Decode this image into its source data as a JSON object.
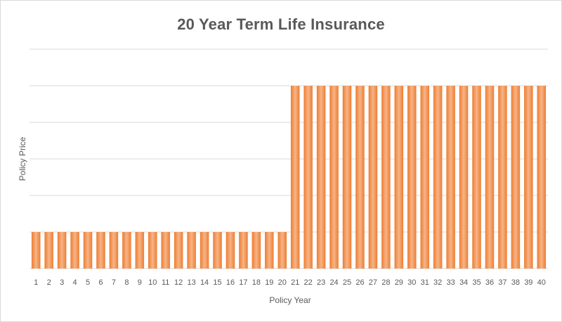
{
  "chart_data": {
    "type": "bar",
    "title": "20 Year Term Life Insurance",
    "xlabel": "Policy Year",
    "ylabel": "Policy Price",
    "categories": [
      "1",
      "2",
      "3",
      "4",
      "5",
      "6",
      "7",
      "8",
      "9",
      "10",
      "11",
      "12",
      "13",
      "14",
      "15",
      "16",
      "17",
      "18",
      "19",
      "20",
      "21",
      "22",
      "23",
      "24",
      "25",
      "26",
      "27",
      "28",
      "29",
      "30",
      "31",
      "32",
      "33",
      "34",
      "35",
      "36",
      "37",
      "38",
      "39",
      "40"
    ],
    "values": [
      1,
      1,
      1,
      1,
      1,
      1,
      1,
      1,
      1,
      1,
      1,
      1,
      1,
      1,
      1,
      1,
      1,
      1,
      1,
      1,
      5,
      5,
      5,
      5,
      5,
      5,
      5,
      5,
      5,
      5,
      5,
      5,
      5,
      5,
      5,
      5,
      5,
      5,
      5,
      5
    ],
    "ylim": [
      0,
      6
    ],
    "grid": true,
    "y_tick_labels_visible": false,
    "legend": "none",
    "colors": {
      "bar_fill": "#ED7D31",
      "bar_highlight": "#F7B487",
      "grid": "#D9D9D9",
      "text": "#595959"
    }
  }
}
